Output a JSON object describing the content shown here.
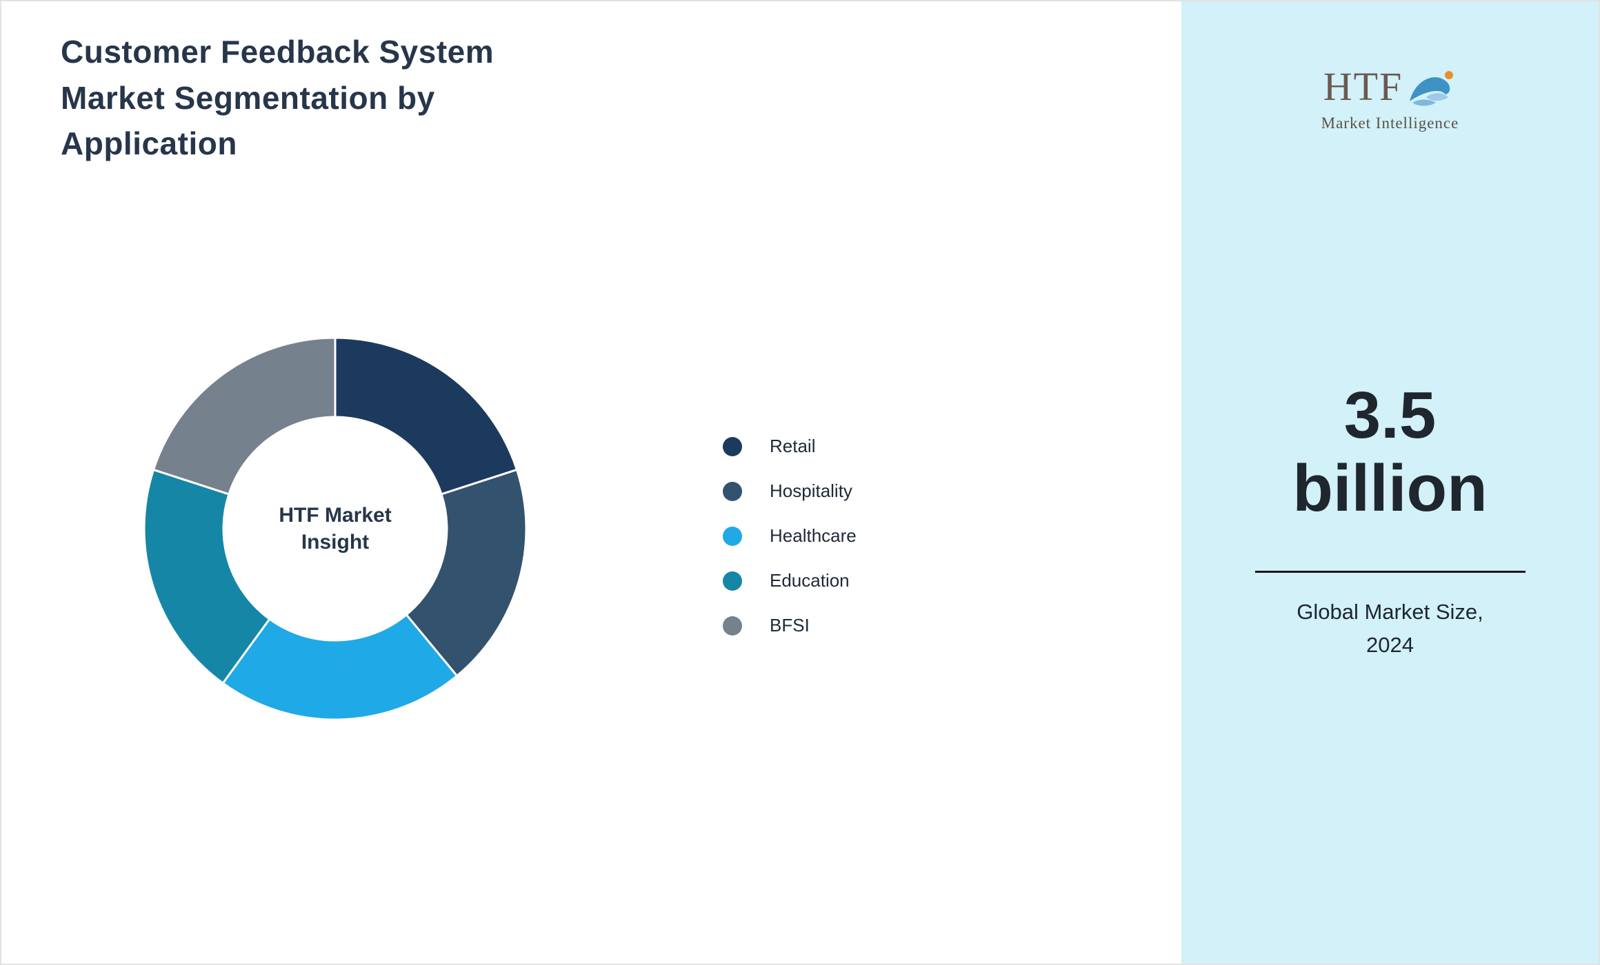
{
  "title": "Customer Feedback System\nMarket Segmentation by\nApplication",
  "chart_data": {
    "type": "pie",
    "donut": true,
    "title": "Customer Feedback System Market Segmentation by Application",
    "center_label": "HTF Market\nInsight",
    "categories": [
      "Retail",
      "Hospitality",
      "Healthcare",
      "Education",
      "BFSI"
    ],
    "values": [
      20,
      19,
      21,
      20,
      20
    ],
    "unit": "% (estimated from arc angles, no numeric labels shown)",
    "colors": [
      "#1c3a5e",
      "#33526e",
      "#1fa9e6",
      "#1686a6",
      "#76818e"
    ],
    "legend_position": "right",
    "start_angle_deg": 0,
    "direction": "clockwise",
    "slice_separator_color": "#ffffff"
  },
  "sidebar": {
    "background": "#d2f1f9",
    "logo": {
      "text": "HTF",
      "subtext": "Market Intelligence"
    },
    "stat_value": "3.5\nbillion",
    "caption": "Global Market Size,\n2024"
  }
}
